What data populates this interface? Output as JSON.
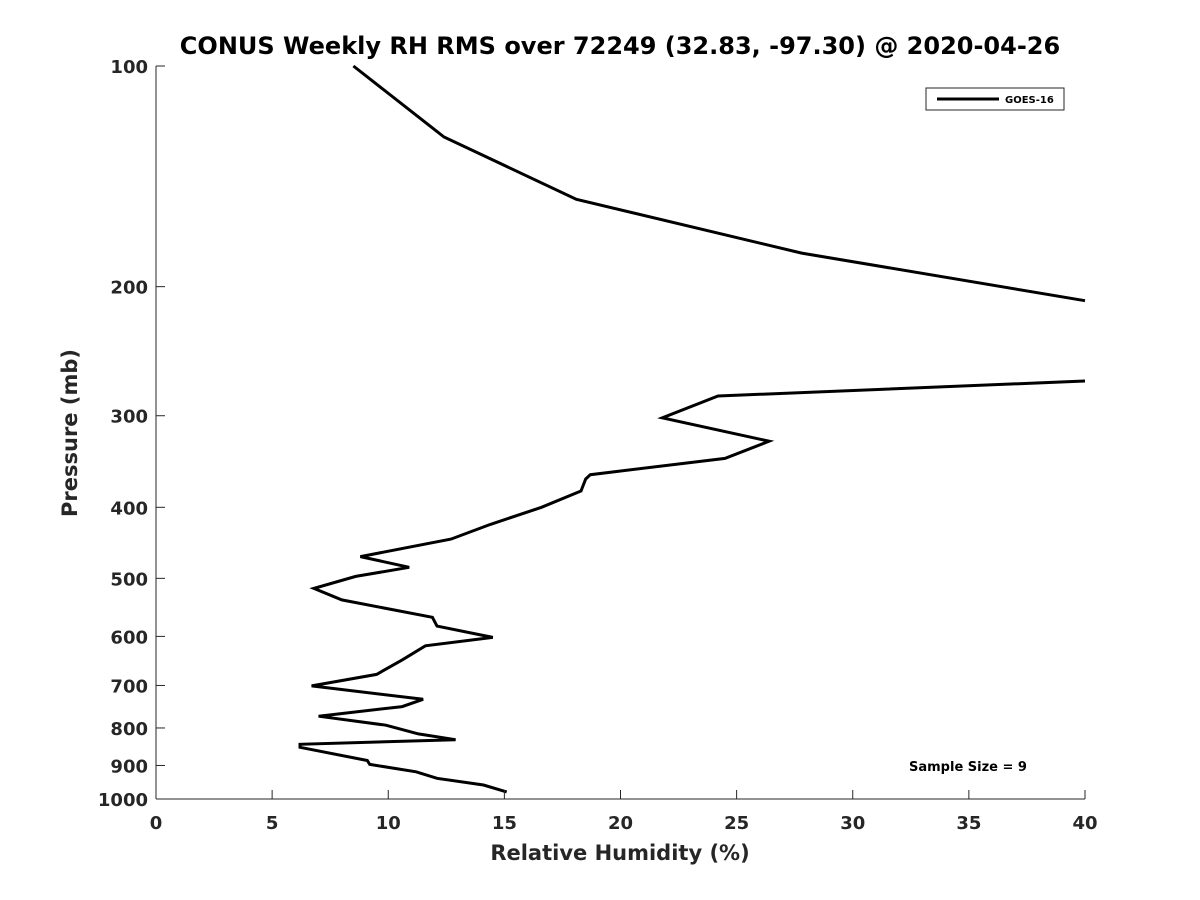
{
  "chart_data": {
    "type": "line",
    "title": "CONUS Weekly RH RMS over 72249 (32.83, -97.30) @ 2020-04-26",
    "xlabel": "Relative Humidity (%)",
    "ylabel": "Pressure (mb)",
    "xlim": [
      0,
      40
    ],
    "ylim": [
      100,
      1000
    ],
    "y_scale": "log",
    "y_inverted": true,
    "grid": false,
    "legend_position": "top-right",
    "x_ticks": [
      0,
      5,
      10,
      15,
      20,
      25,
      30,
      35,
      40
    ],
    "y_ticks": [
      100,
      200,
      300,
      400,
      500,
      600,
      700,
      800,
      900,
      1000
    ],
    "series": [
      {
        "name": "GOES-16",
        "color": "#000000",
        "x": [
          8.5,
          12.4,
          18.1,
          27.8,
          40,
          null,
          40,
          24.2,
          21.8,
          26.4,
          24.5,
          18.7,
          18.5,
          18.3,
          16.6,
          14.4,
          12.7,
          8.8,
          10.9,
          8.6,
          6.8,
          8.0,
          11.9,
          12.1,
          14.5,
          11.6,
          10.6,
          9.5,
          6.7,
          11.5,
          10.6,
          7.0,
          9.9,
          11.3,
          12.9,
          6.2,
          6.2,
          9.1,
          9.2,
          11.2,
          12.1,
          14.1,
          15.1
        ],
        "y": [
          100,
          125,
          152,
          180,
          209,
          null,
          269,
          282,
          302,
          325,
          343,
          361,
          366,
          380,
          400,
          422,
          442,
          467,
          483,
          497,
          516,
          535,
          565,
          581,
          602,
          618,
          646,
          676,
          701,
          731,
          748,
          771,
          793,
          815,
          830,
          842,
          850,
          886,
          897,
          918,
          937,
          957,
          978
        ]
      }
    ],
    "annotations": [
      "Sample Size = 9"
    ]
  }
}
